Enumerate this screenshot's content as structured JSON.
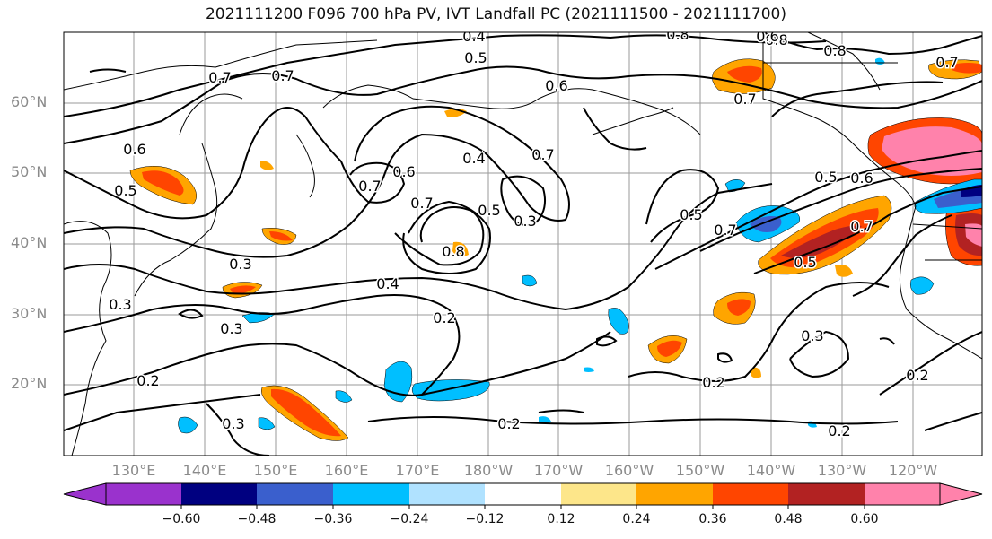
{
  "title": "2021111200 F096 700 hPa PV, IVT Landfall PC (2021111500 - 2021111700)",
  "lat_labels": [
    "60°N",
    "50°N",
    "40°N",
    "30°N",
    "20°N"
  ],
  "lon_labels": [
    "130°E",
    "140°E",
    "150°E",
    "160°E",
    "170°E",
    "180°W",
    "170°W",
    "160°W",
    "150°W",
    "140°W",
    "130°W",
    "120°W"
  ],
  "contour_labels": [
    "0.4",
    "0.8",
    "0.7",
    "0.5",
    "0.7",
    "0.8",
    "0.6",
    "0.8",
    "0.7",
    "0.6",
    "0.4",
    "0.7",
    "0.6",
    "0.5",
    "0.7",
    "0.3",
    "0.3",
    "0.8",
    "0.7",
    "0.5",
    "0.7",
    "0.8",
    "0.5",
    "0.3",
    "0.4",
    "0.2",
    "0.3",
    "0.2",
    "0.3",
    "0.2",
    "0.3",
    "0.2",
    "0.2",
    "0.2",
    "0.5",
    "0.7",
    "0.5",
    "0.6",
    "0.7",
    "0.6"
  ],
  "colorbar": {
    "ticks": [
      "−0.60",
      "−0.48",
      "−0.36",
      "−0.24",
      "−0.12",
      "0.12",
      "0.24",
      "0.36",
      "0.48",
      "0.60"
    ],
    "colors": [
      "#9a32cd",
      "#000080",
      "#3a5fcd",
      "#00bfff",
      "#b0e2ff",
      "#ffffff",
      "#fde68a",
      "#ffa500",
      "#ff4500",
      "#b22222",
      "#ff82ab"
    ]
  },
  "shading_colors": {
    "neg_light": "#00bfff",
    "neg_mid": "#3a5fcd",
    "neg_dark": "#000080",
    "pos_light": "#fde68a",
    "pos_mid": "#ffa500",
    "pos_strong": "#ff4500",
    "pos_dark": "#b22222",
    "pos_max": "#ff82ab"
  }
}
